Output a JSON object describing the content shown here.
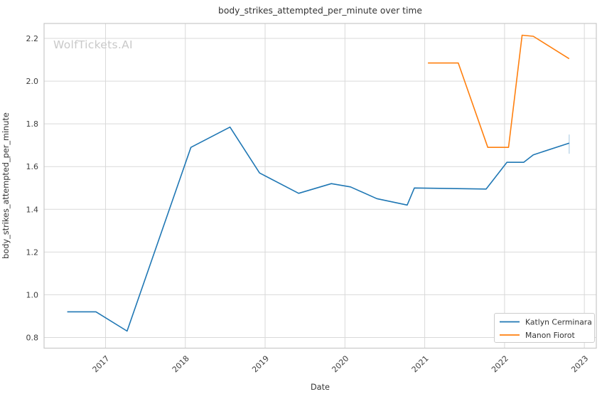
{
  "watermark": "WolfTickets.AI",
  "colors": {
    "background": "#ffffff",
    "grid": "#d9d9d9",
    "spine": "#c8c8c8",
    "title_text": "#333333",
    "tick_text": "#3d3d3d",
    "watermark_text": "#c9c9c9",
    "legend_border": "#cccccc",
    "series_blue": "#1f77b4",
    "series_orange": "#ff7f0e"
  },
  "chart_data": {
    "type": "line",
    "title": "body_strikes_attempted_per_minute over time",
    "xlabel": "Date",
    "ylabel": "body_strikes_attempted_per_minute",
    "xlim": [
      2016.23,
      2023.15
    ],
    "ylim": [
      0.75,
      2.27
    ],
    "x_ticks": [
      "2017",
      "2018",
      "2019",
      "2020",
      "2021",
      "2022",
      "2023"
    ],
    "x_tick_values": [
      2017,
      2018,
      2019,
      2020,
      2021,
      2022,
      2023
    ],
    "y_ticks": [
      "0.8",
      "1.0",
      "1.2",
      "1.4",
      "1.6",
      "1.8",
      "2.0",
      "2.2"
    ],
    "y_tick_values": [
      0.8,
      1.0,
      1.2,
      1.4,
      1.6,
      1.8,
      2.0,
      2.2
    ],
    "grid": true,
    "legend_position": "lower right",
    "series": [
      {
        "name": "Katlyn Cerminara",
        "color": "#1f77b4",
        "points": [
          [
            2016.52,
            0.92
          ],
          [
            2016.88,
            0.92
          ],
          [
            2017.27,
            0.83
          ],
          [
            2018.07,
            1.69
          ],
          [
            2018.56,
            1.785
          ],
          [
            2018.93,
            1.57
          ],
          [
            2019.42,
            1.475
          ],
          [
            2019.83,
            1.52
          ],
          [
            2020.07,
            1.505
          ],
          [
            2020.4,
            1.45
          ],
          [
            2020.78,
            1.42
          ],
          [
            2020.87,
            1.5
          ],
          [
            2021.77,
            1.495
          ],
          [
            2022.03,
            1.62
          ],
          [
            2022.24,
            1.62
          ],
          [
            2022.36,
            1.655
          ],
          [
            2022.81,
            1.71
          ]
        ],
        "end_tick": {
          "x": 2022.81,
          "y_from": 1.66,
          "y_to": 1.75,
          "opacity": 0.35
        }
      },
      {
        "name": "Manon Fiorot",
        "color": "#ff7f0e",
        "points": [
          [
            2021.04,
            2.085
          ],
          [
            2021.42,
            2.085
          ],
          [
            2021.79,
            1.69
          ],
          [
            2022.05,
            1.69
          ],
          [
            2022.22,
            2.215
          ],
          [
            2022.36,
            2.21
          ],
          [
            2022.81,
            2.105
          ]
        ]
      }
    ]
  }
}
